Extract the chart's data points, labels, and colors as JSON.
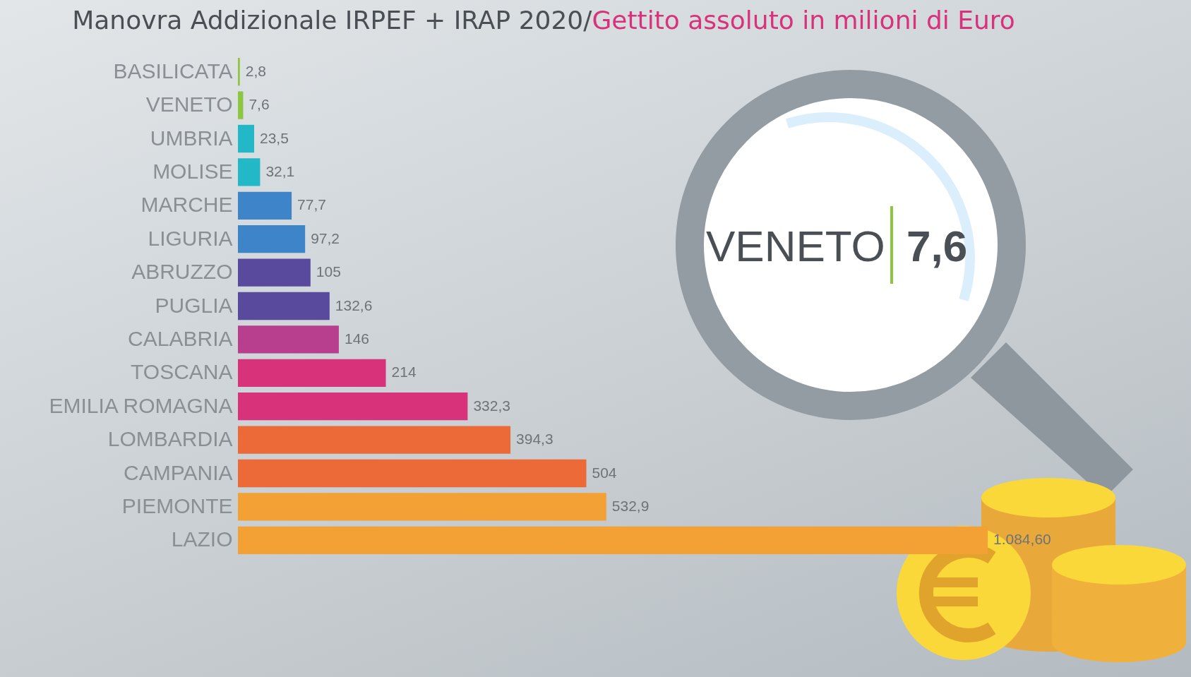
{
  "chart_data": {
    "type": "bar",
    "orientation": "horizontal",
    "title": "Manovra Addizionale IRPEF + IRAP 2020/",
    "subtitle": "Gettito assoluto in milioni di Euro",
    "categories": [
      "BASILICATA",
      "VENETO",
      "UMBRIA",
      "MOLISE",
      "MARCHE",
      "LIGURIA",
      "ABRUZZO",
      "PUGLIA",
      "CALABRIA",
      "TOSCANA",
      "EMILIA ROMAGNA",
      "LOMBARDIA",
      "CAMPANIA",
      "PIEMONTE",
      "LAZIO"
    ],
    "values": [
      2.8,
      7.6,
      23.5,
      32.1,
      77.7,
      97.2,
      105,
      132.6,
      146,
      214,
      332.3,
      394.3,
      504,
      532.9,
      1084.6
    ],
    "value_labels": [
      "2,8",
      "7,6",
      "23,5",
      "32,1",
      "77,7",
      "97,2",
      "105",
      "132,6",
      "146",
      "214",
      "332,3",
      "394,3",
      "504",
      "532,9",
      "1.084,60"
    ],
    "colors": [
      "#8dc63f",
      "#8dc63f",
      "#22b8c8",
      "#22b8c8",
      "#3d85c8",
      "#3d85c8",
      "#5a4a9e",
      "#5a4a9e",
      "#b83e8e",
      "#d8327a",
      "#d8327a",
      "#ec6a38",
      "#ec6a38",
      "#f3a034",
      "#f3a034"
    ],
    "annotations": [
      "VENETO",
      "7,6"
    ]
  }
}
